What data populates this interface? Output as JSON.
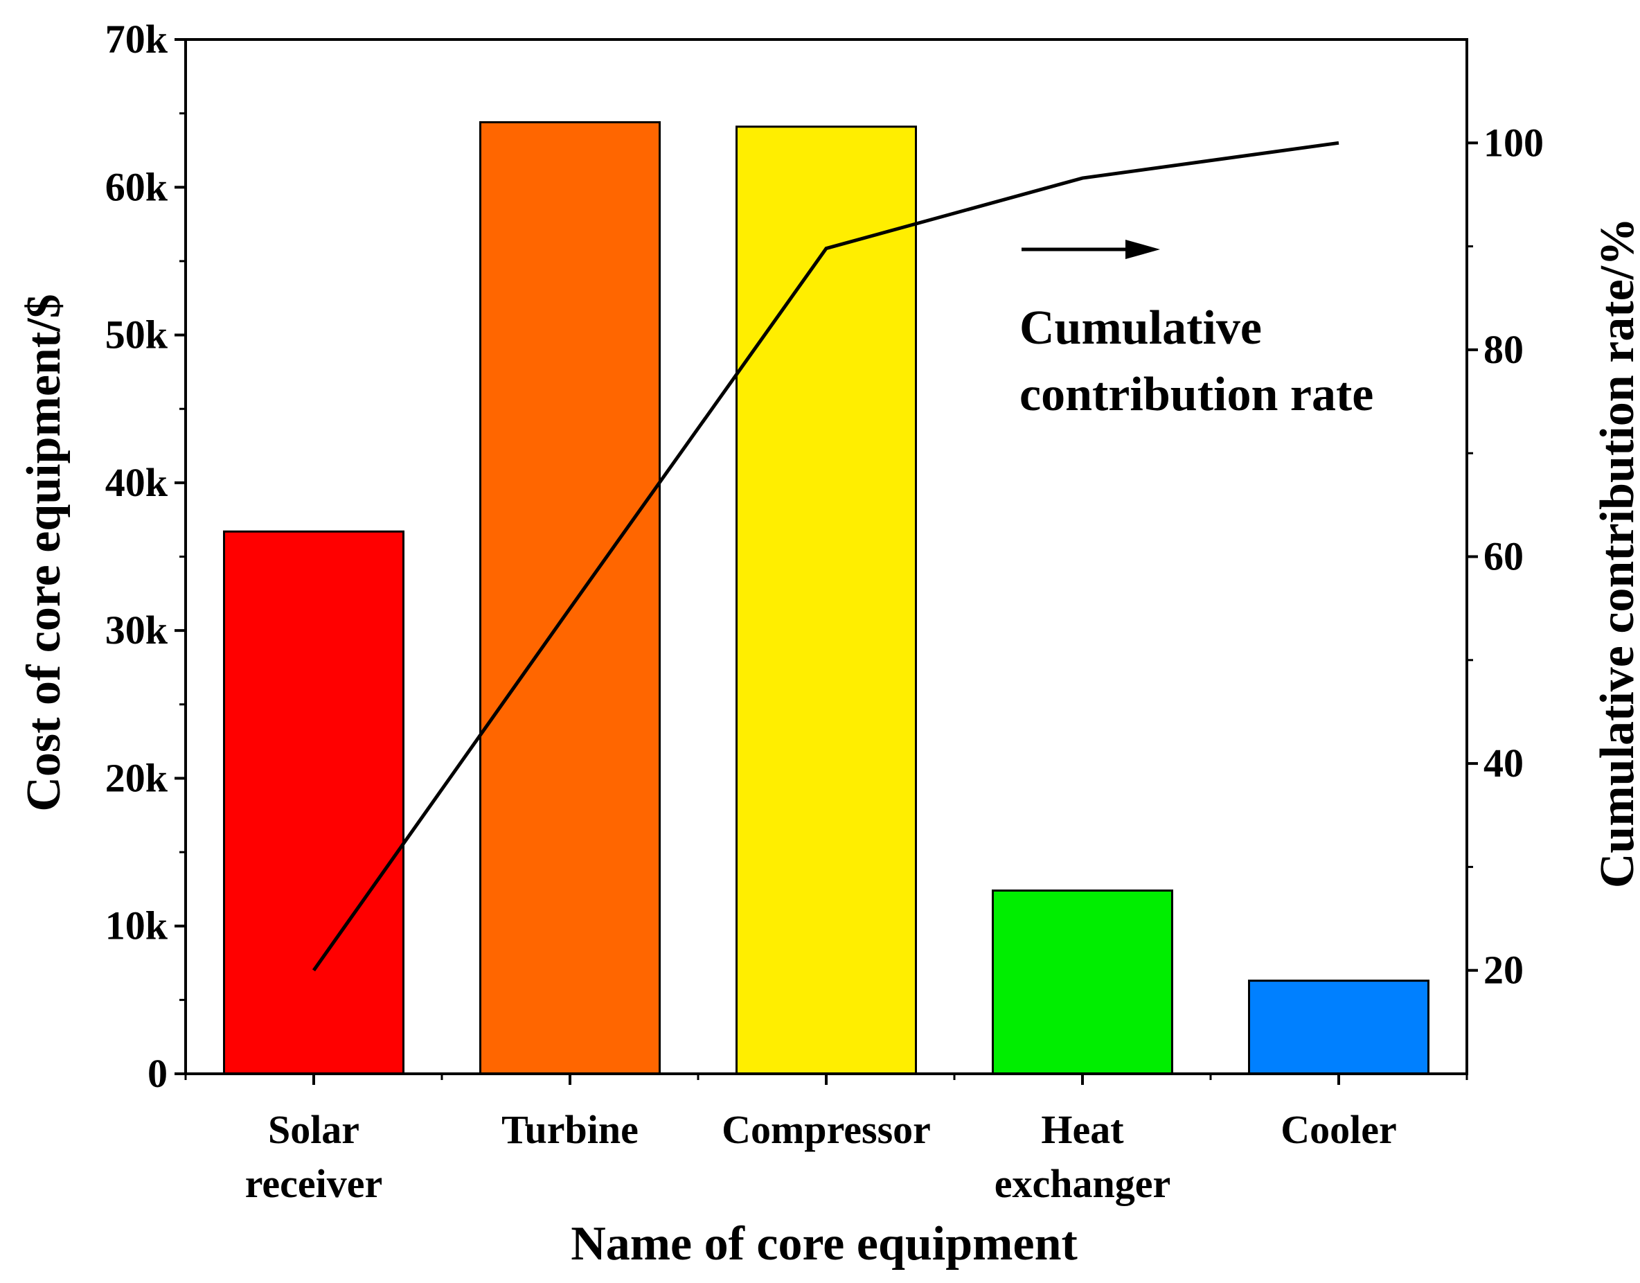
{
  "chart_data": {
    "type": "bar",
    "categories": [
      [
        "Solar",
        "receiver"
      ],
      [
        "Turbine"
      ],
      [
        "Compressor"
      ],
      [
        "Heat",
        "exchanger"
      ],
      [
        "Cooler"
      ]
    ],
    "values": [
      36700,
      64400,
      64100,
      12400,
      6300
    ],
    "bar_colors": [
      "#ff0000",
      "#ff6600",
      "#ffee00",
      "#00ee00",
      "#0080ff"
    ],
    "xlabel": "Name of core equipment",
    "ylabel": "Cost of core equipment/$",
    "ylim": [
      0,
      70000
    ],
    "yticks": [
      0,
      10000,
      20000,
      30000,
      40000,
      50000,
      60000,
      70000
    ],
    "ytick_labels": [
      "0",
      "10k",
      "20k",
      "30k",
      "40k",
      "50k",
      "60k",
      "70k"
    ],
    "y2label": "Cumulative contribution rate/%",
    "y2lim": [
      10,
      110
    ],
    "y2ticks": [
      20,
      40,
      60,
      80,
      100
    ],
    "y2tick_labels": [
      "20",
      "40",
      "60",
      "80",
      "100"
    ],
    "line": {
      "name": "Cumulative contribution rate",
      "values": [
        20.0,
        55.0,
        89.8,
        96.6,
        100.0
      ],
      "color": "#000000"
    },
    "annotation": {
      "lines": [
        "Cumulative",
        "contribution rate"
      ],
      "arrow_direction": "right"
    }
  }
}
